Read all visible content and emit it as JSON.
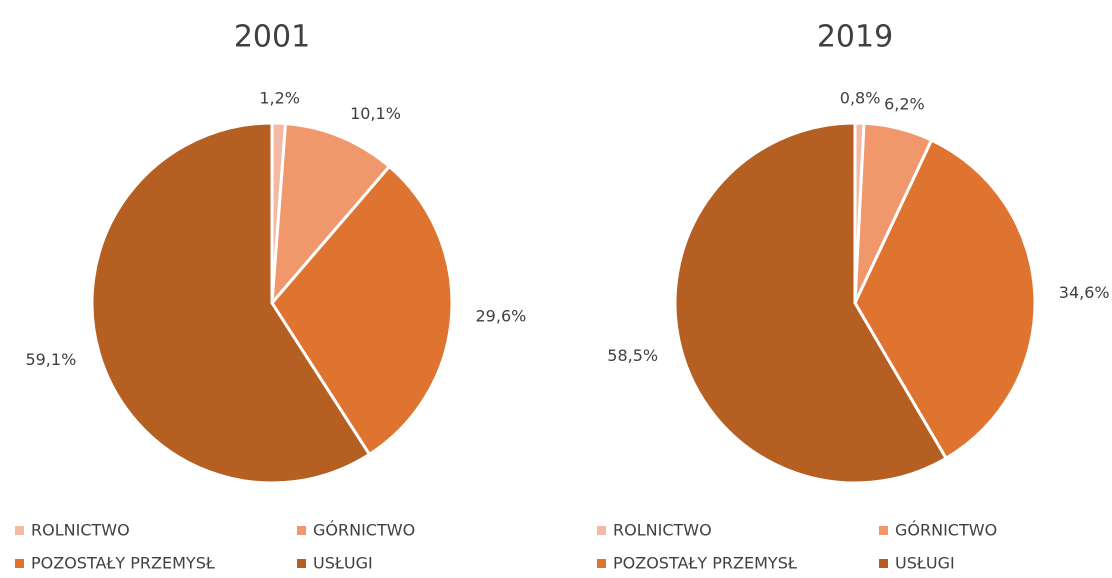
{
  "chart_data": [
    {
      "type": "pie",
      "title": "2001",
      "categories": [
        "ROLNICTWO",
        "GÓRNICTWO",
        "POZOSTAŁY PRZEMYSŁ",
        "USŁUGI"
      ],
      "values": [
        1.2,
        10.1,
        29.6,
        59.1
      ],
      "value_labels": [
        "1,2%",
        "10,1%",
        "29,6%",
        "59,1%"
      ],
      "colors": [
        "#f4b9a2",
        "#f0986c",
        "#de7430",
        "#b65f23"
      ]
    },
    {
      "type": "pie",
      "title": "2019",
      "categories": [
        "ROLNICTWO",
        "GÓRNICTWO",
        "POZOSTAŁY PRZEMYSŁ",
        "USŁUGI"
      ],
      "values": [
        0.8,
        6.2,
        34.6,
        58.5
      ],
      "value_labels": [
        "0,8%",
        "6,2%",
        "34,6%",
        "58,5%"
      ],
      "colors": [
        "#f4b9a2",
        "#f0986c",
        "#de7430",
        "#b65f23"
      ]
    }
  ]
}
